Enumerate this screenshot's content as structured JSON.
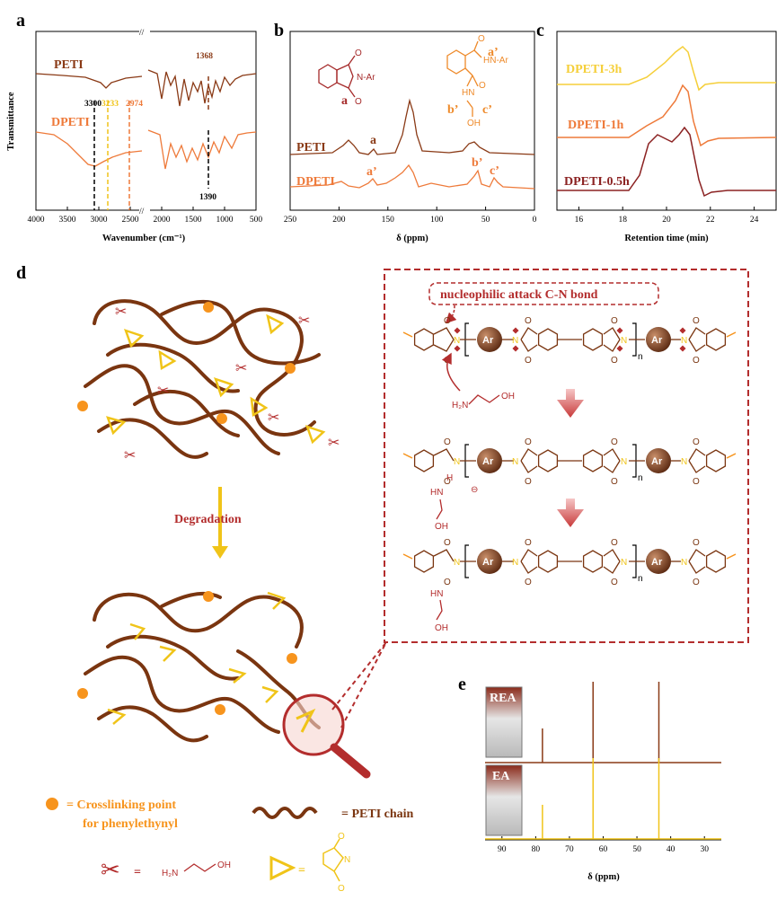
{
  "figure": {
    "panel_labels": [
      "a",
      "b",
      "c",
      "d",
      "e"
    ],
    "colors": {
      "peti": "#8a3a16",
      "dpeti": "#ee7a3a",
      "dpeti_05h": "#8b2222",
      "dpeti_1h": "#ee7a3a",
      "dpeti_3h": "#f5cf3a",
      "chain": "#7a3510",
      "crosslink": "#f7941d",
      "highlight": "#f0c419",
      "dashed_box": "#b32d2d"
    }
  },
  "chart_data": [
    {
      "id": "a",
      "type": "line",
      "xlabel": "Wavenumber (cm⁻¹)",
      "ylabel": "Transmittance",
      "xlim": [
        4000,
        500
      ],
      "x_ticks": [
        "4000",
        "3500",
        "3000",
        "2500",
        "2000",
        "1500",
        "1000",
        "500"
      ],
      "axis_break": "//",
      "series": [
        {
          "name": "PETI"
        },
        {
          "name": "DPETI"
        }
      ],
      "annotations": [
        "3300",
        "3233",
        "2974",
        "1368",
        "1390"
      ]
    },
    {
      "id": "b",
      "type": "line",
      "xlabel": "δ (ppm)",
      "xlim": [
        250,
        0
      ],
      "x_ticks": [
        "250",
        "200",
        "150",
        "100",
        "50",
        "0"
      ],
      "series": [
        {
          "name": "PETI"
        },
        {
          "name": "DPETI"
        }
      ],
      "peak_labels": [
        "a",
        "a’",
        "b’",
        "c’"
      ],
      "structure_labels": {
        "peti_n": "N-Ar",
        "a": "a",
        "dpeti_a": "a’",
        "dpeti_nh": "HN-Ar",
        "dpeti_hn": "HN",
        "b": "b’",
        "c": "c’",
        "oh": "OH",
        "o": "O"
      }
    },
    {
      "id": "c",
      "type": "line",
      "xlabel": "Retention time (min)",
      "xlim": [
        15,
        25
      ],
      "x_ticks": [
        "16",
        "18",
        "20",
        "22",
        "24"
      ],
      "series": [
        {
          "name": "DPETI-3h"
        },
        {
          "name": "DPETI-1h"
        },
        {
          "name": "DPETI-0.5h"
        }
      ]
    },
    {
      "id": "e",
      "type": "line",
      "xlabel": "δ (ppm)",
      "xlim": [
        95,
        25
      ],
      "x_ticks": [
        "90",
        "80",
        "70",
        "60",
        "50",
        "40",
        "30"
      ],
      "series": [
        {
          "name": "REA"
        },
        {
          "name": "EA"
        }
      ],
      "peaks_ppm": [
        78,
        63,
        43.5
      ]
    }
  ],
  "scheme": {
    "degradation": "Degradation",
    "mechanism_title": "nucleophilic attack C-N bond",
    "ar": "Ar",
    "n": "n",
    "n_atom": "N",
    "o_atom": "O",
    "h2n": "H₂N",
    "oh": "OH",
    "hn": "HN",
    "h": "H",
    "minus": "⊖",
    "legend": {
      "crosslink_line1": "= Crosslinking point",
      "crosslink_line2": "for phenylethynyl",
      "chain": "= PETI chain",
      "eq": "=",
      "h2n": "H₂N",
      "oh": "OH"
    }
  }
}
